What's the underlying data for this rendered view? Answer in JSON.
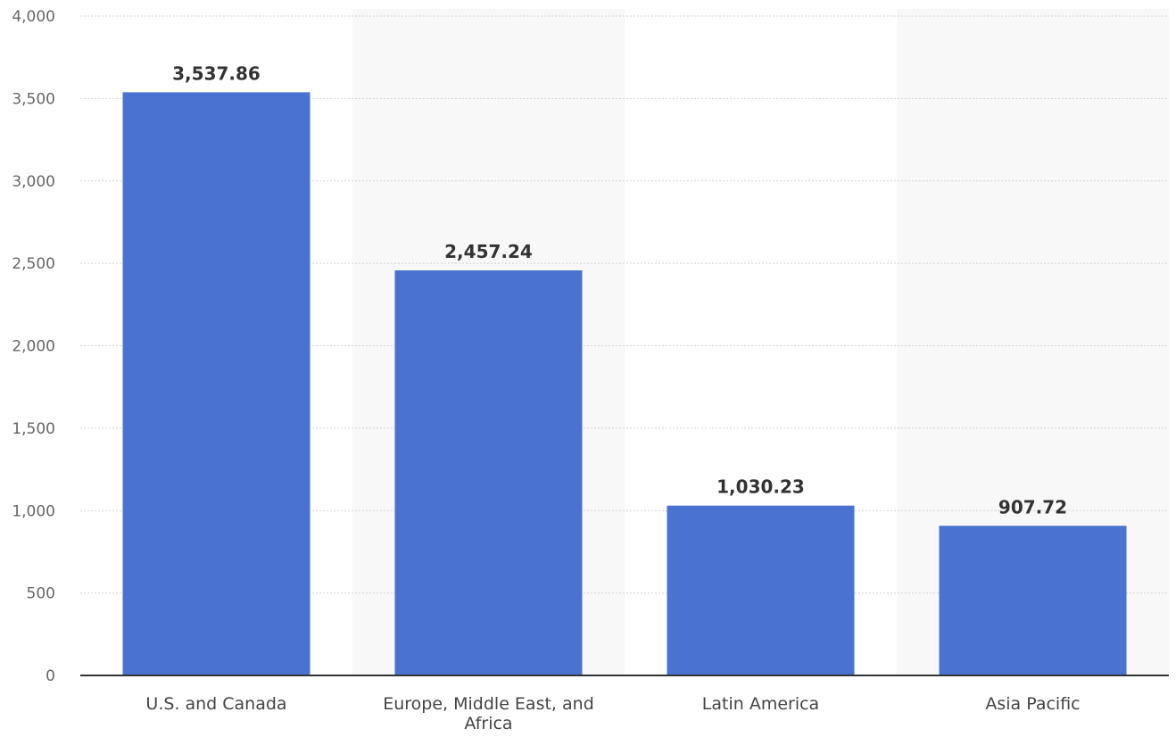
{
  "chart_data": {
    "type": "bar",
    "categories": [
      [
        "U.S. and Canada"
      ],
      [
        "Europe, Middle East, and",
        "Africa"
      ],
      [
        "Latin America"
      ],
      [
        "Asia Pacific"
      ]
    ],
    "values": [
      3537.86,
      2457.24,
      1030.23,
      907.72
    ],
    "value_labels": [
      "3,537.86",
      "2,457.24",
      "1,030.23",
      "907.72"
    ],
    "ylim": [
      0,
      4000
    ],
    "yticks": [
      0,
      500,
      1000,
      1500,
      2000,
      2500,
      3000,
      3500,
      4000
    ],
    "ytick_labels": [
      "0",
      "500",
      "1,000",
      "1,500",
      "2,000",
      "2,500",
      "3,000",
      "3,500",
      "4,000"
    ],
    "title": "",
    "xlabel": "",
    "ylabel": "",
    "grid": true,
    "bar_color": "#4a72d1"
  }
}
